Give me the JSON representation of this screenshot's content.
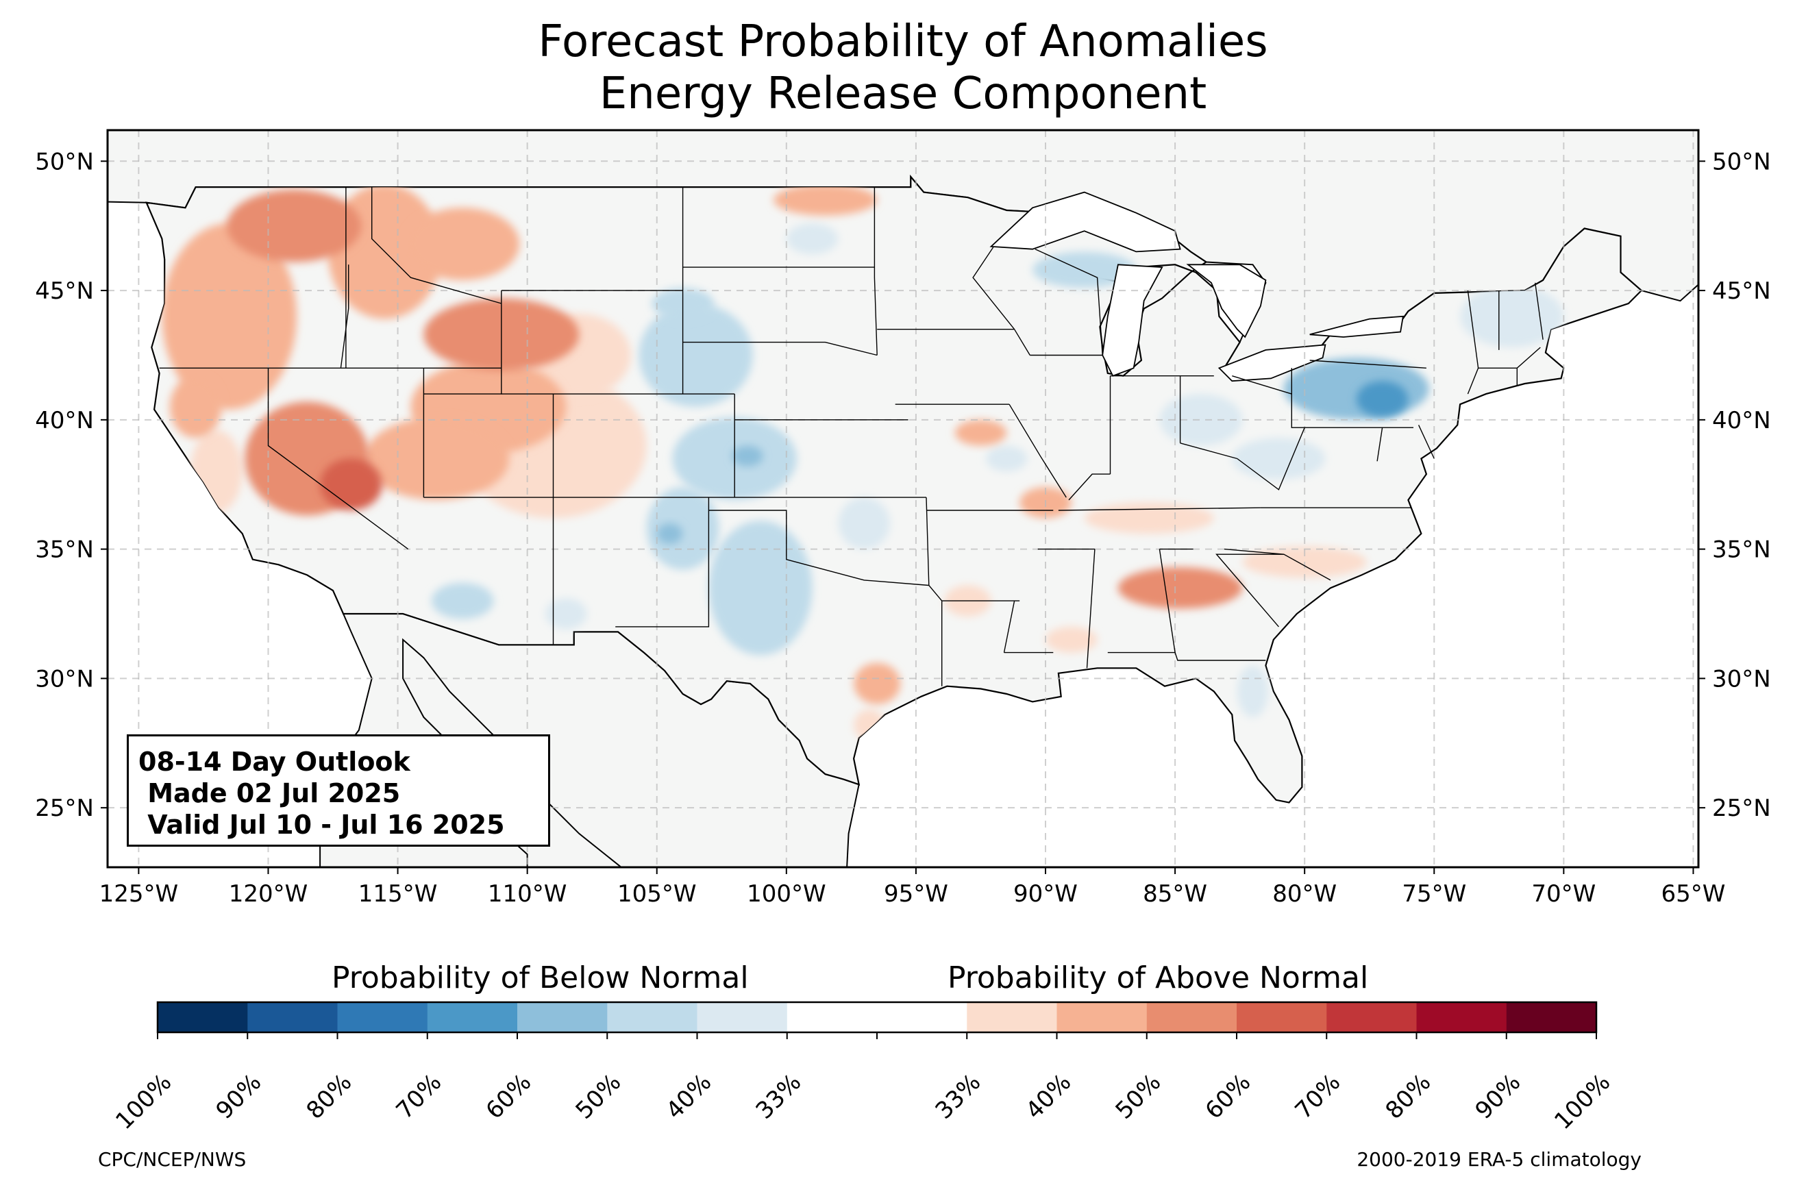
{
  "title": {
    "line1": "Forecast Probability of Anomalies",
    "line2": "Energy Release Component"
  },
  "outlook_box": {
    "line1": "08-14 Day Outlook",
    "line2": " Made 02 Jul 2025",
    "line3": " Valid Jul 10 - Jul 16 2025"
  },
  "map": {
    "lon_range": [
      -126.2,
      -64.8
    ],
    "lat_range": [
      22.7,
      51.2
    ],
    "lon_ticks": [
      -125,
      -120,
      -115,
      -110,
      -105,
      -100,
      -95,
      -90,
      -85,
      -80,
      -75,
      -70,
      -65
    ],
    "lon_tick_labels": [
      "125°W",
      "120°W",
      "115°W",
      "110°W",
      "105°W",
      "100°W",
      "95°W",
      "90°W",
      "85°W",
      "80°W",
      "75°W",
      "70°W",
      "65°W"
    ],
    "lat_ticks": [
      25,
      30,
      35,
      40,
      45,
      50
    ],
    "lat_tick_labels": [
      "25°N",
      "30°N",
      "35°N",
      "40°N",
      "45°N",
      "50°N"
    ],
    "gridlines": true,
    "ocean_color": "#ffffff",
    "land_color": "#f5f6f5",
    "above_regions": [
      {
        "lon": -121.5,
        "lat": 44.0,
        "rx": 2.6,
        "ry": 3.6,
        "level": 50
      },
      {
        "lon": -119.0,
        "lat": 47.5,
        "rx": 2.6,
        "ry": 1.4,
        "level": 60
      },
      {
        "lon": -115.5,
        "lat": 46.5,
        "rx": 2.2,
        "ry": 2.6,
        "level": 50
      },
      {
        "lon": -112.5,
        "lat": 46.8,
        "rx": 2.2,
        "ry": 1.4,
        "level": 50
      },
      {
        "lon": -111.0,
        "lat": 43.3,
        "rx": 3.0,
        "ry": 1.4,
        "level": 60
      },
      {
        "lon": -111.5,
        "lat": 40.5,
        "rx": 3.0,
        "ry": 1.8,
        "level": 50
      },
      {
        "lon": -109.0,
        "lat": 39.0,
        "rx": 3.6,
        "ry": 2.8,
        "level": 40
      },
      {
        "lon": -108.0,
        "lat": 42.5,
        "rx": 2.0,
        "ry": 1.6,
        "level": 40
      },
      {
        "lon": -118.5,
        "lat": 38.5,
        "rx": 2.4,
        "ry": 2.2,
        "level": 60
      },
      {
        "lon": -116.8,
        "lat": 37.5,
        "rx": 1.2,
        "ry": 1.0,
        "level": 70
      },
      {
        "lon": -113.5,
        "lat": 38.5,
        "rx": 2.8,
        "ry": 1.6,
        "level": 50
      },
      {
        "lon": -122.8,
        "lat": 40.5,
        "rx": 1.0,
        "ry": 1.2,
        "level": 50
      },
      {
        "lon": -122.0,
        "lat": 38.0,
        "rx": 1.0,
        "ry": 1.6,
        "level": 40
      },
      {
        "lon": -98.5,
        "lat": 48.5,
        "rx": 2.0,
        "ry": 0.6,
        "level": 50
      },
      {
        "lon": -96.5,
        "lat": 29.8,
        "rx": 0.9,
        "ry": 0.8,
        "level": 50
      },
      {
        "lon": -92.5,
        "lat": 39.5,
        "rx": 1.0,
        "ry": 0.5,
        "level": 50
      },
      {
        "lon": -90.0,
        "lat": 36.8,
        "rx": 1.0,
        "ry": 0.6,
        "level": 50
      },
      {
        "lon": -84.8,
        "lat": 33.5,
        "rx": 2.4,
        "ry": 0.8,
        "level": 60
      },
      {
        "lon": -86.0,
        "lat": 36.2,
        "rx": 2.5,
        "ry": 0.6,
        "level": 40
      },
      {
        "lon": -80.0,
        "lat": 34.5,
        "rx": 2.4,
        "ry": 0.6,
        "level": 40
      },
      {
        "lon": -93.0,
        "lat": 33.0,
        "rx": 0.9,
        "ry": 0.6,
        "level": 40
      },
      {
        "lon": -89.0,
        "lat": 31.5,
        "rx": 1.0,
        "ry": 0.5,
        "level": 40
      },
      {
        "lon": -96.8,
        "lat": 28.2,
        "rx": 0.6,
        "ry": 0.6,
        "level": 40
      }
    ],
    "below_regions": [
      {
        "lon": -103.5,
        "lat": 42.5,
        "rx": 2.2,
        "ry": 2.0,
        "level": 50
      },
      {
        "lon": -104.0,
        "lat": 44.5,
        "rx": 1.2,
        "ry": 0.6,
        "level": 50
      },
      {
        "lon": -102.0,
        "lat": 38.5,
        "rx": 2.4,
        "ry": 1.6,
        "level": 50
      },
      {
        "lon": -101.5,
        "lat": 38.6,
        "rx": 0.6,
        "ry": 0.4,
        "level": 60
      },
      {
        "lon": -104.0,
        "lat": 35.8,
        "rx": 1.4,
        "ry": 1.6,
        "level": 50
      },
      {
        "lon": -104.5,
        "lat": 35.6,
        "rx": 0.5,
        "ry": 0.4,
        "level": 60
      },
      {
        "lon": -101.0,
        "lat": 33.5,
        "rx": 2.0,
        "ry": 2.6,
        "level": 50
      },
      {
        "lon": -97.0,
        "lat": 36.0,
        "rx": 1.0,
        "ry": 1.0,
        "level": 40
      },
      {
        "lon": -99.0,
        "lat": 47.0,
        "rx": 1.0,
        "ry": 0.6,
        "level": 40
      },
      {
        "lon": -88.5,
        "lat": 45.8,
        "rx": 2.0,
        "ry": 0.7,
        "level": 50
      },
      {
        "lon": -84.0,
        "lat": 40.0,
        "rx": 1.6,
        "ry": 1.0,
        "level": 40
      },
      {
        "lon": -81.0,
        "lat": 38.5,
        "rx": 1.8,
        "ry": 0.8,
        "level": 40
      },
      {
        "lon": -78.0,
        "lat": 41.2,
        "rx": 2.8,
        "ry": 1.2,
        "level": 60
      },
      {
        "lon": -77.0,
        "lat": 40.8,
        "rx": 1.0,
        "ry": 0.7,
        "level": 70
      },
      {
        "lon": -72.0,
        "lat": 44.0,
        "rx": 2.0,
        "ry": 1.2,
        "level": 40
      },
      {
        "lon": -91.5,
        "lat": 38.5,
        "rx": 0.8,
        "ry": 0.5,
        "level": 40
      },
      {
        "lon": -112.5,
        "lat": 33.0,
        "rx": 1.2,
        "ry": 0.7,
        "level": 50
      },
      {
        "lon": -108.5,
        "lat": 32.5,
        "rx": 0.8,
        "ry": 0.6,
        "level": 40
      },
      {
        "lon": -82.0,
        "lat": 29.5,
        "rx": 0.6,
        "ry": 1.0,
        "level": 40
      }
    ]
  },
  "colorbar": {
    "label_below": "Probability of Below Normal",
    "label_above": "Probability of Above Normal",
    "colors": [
      "#053061",
      "#1a5897",
      "#2f79b5",
      "#4b98c7",
      "#8ebfdb",
      "#bfdbea",
      "#dce9f1",
      "#ffffff",
      "#ffffff",
      "#fbddcd",
      "#f6b293",
      "#e88d6f",
      "#d6604d",
      "#c13639",
      "#9e0a27",
      "#67001f"
    ],
    "tick_labels": [
      "100%",
      "90%",
      "80%",
      "70%",
      "60%",
      "50%",
      "40%",
      "33%",
      "33%",
      "40%",
      "50%",
      "60%",
      "70%",
      "80%",
      "90%",
      "100%"
    ]
  },
  "credits": {
    "left": "CPC/NCEP/NWS",
    "right": "2000-2019 ERA-5 climatology"
  }
}
